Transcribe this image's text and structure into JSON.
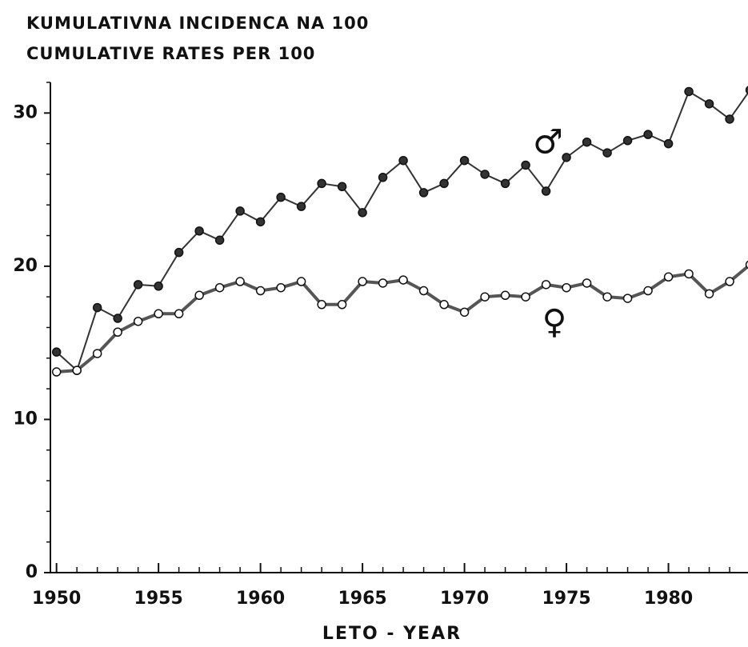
{
  "chart_data": {
    "type": "line",
    "title": "KUMULATIVNA INCIDENCA NA 100",
    "subtitle": "CUMULATIVE RATES PER 100",
    "x_label": "LETO - YEAR",
    "x": [
      1950,
      1951,
      1952,
      1953,
      1954,
      1955,
      1956,
      1957,
      1958,
      1959,
      1960,
      1961,
      1962,
      1963,
      1964,
      1965,
      1966,
      1967,
      1968,
      1969,
      1970,
      1971,
      1972,
      1973,
      1974,
      1975,
      1976,
      1977,
      1978,
      1979,
      1980,
      1981,
      1982,
      1983,
      1984
    ],
    "series": [
      {
        "name": "♂",
        "color": "#333333",
        "marker": "filled",
        "values": [
          14.4,
          13.2,
          17.3,
          16.6,
          18.8,
          18.7,
          20.9,
          22.3,
          21.7,
          23.6,
          22.9,
          24.5,
          23.9,
          25.4,
          25.2,
          23.5,
          25.8,
          26.9,
          24.8,
          25.4,
          26.9,
          26.0,
          25.4,
          26.6,
          24.9,
          27.1,
          28.1,
          27.4,
          28.2,
          28.6,
          28.0,
          31.4,
          30.6,
          29.6,
          31.5
        ]
      },
      {
        "name": "♀",
        "color": "#555555",
        "marker": "open",
        "values": [
          13.1,
          13.2,
          14.3,
          15.7,
          16.4,
          16.9,
          16.9,
          18.1,
          18.6,
          19.0,
          18.4,
          18.6,
          19.0,
          17.5,
          17.5,
          19.0,
          18.9,
          19.1,
          18.4,
          17.5,
          17.0,
          18.0,
          18.1,
          18.0,
          18.8,
          18.6,
          18.9,
          18.0,
          17.9,
          18.4,
          19.3,
          19.5,
          18.2,
          19.0,
          20.1
        ]
      }
    ],
    "xlim": [
      1949.7,
      1983.9
    ],
    "ylim": [
      0,
      32
    ],
    "xticks": [
      1950,
      1955,
      1960,
      1965,
      1970,
      1975,
      1980
    ],
    "xminorticks": [
      1951,
      1952,
      1953,
      1954,
      1956,
      1957,
      1958,
      1959,
      1961,
      1962,
      1963,
      1964,
      1966,
      1967,
      1968,
      1969,
      1971,
      1972,
      1973,
      1974,
      1976,
      1977,
      1978,
      1979,
      1981,
      1982,
      1983
    ],
    "yticks": [
      0,
      10,
      20,
      30
    ],
    "yminorticks": [
      2,
      4,
      6,
      8,
      12,
      14,
      16,
      18,
      22,
      24,
      26,
      28,
      32
    ],
    "grid": false
  }
}
